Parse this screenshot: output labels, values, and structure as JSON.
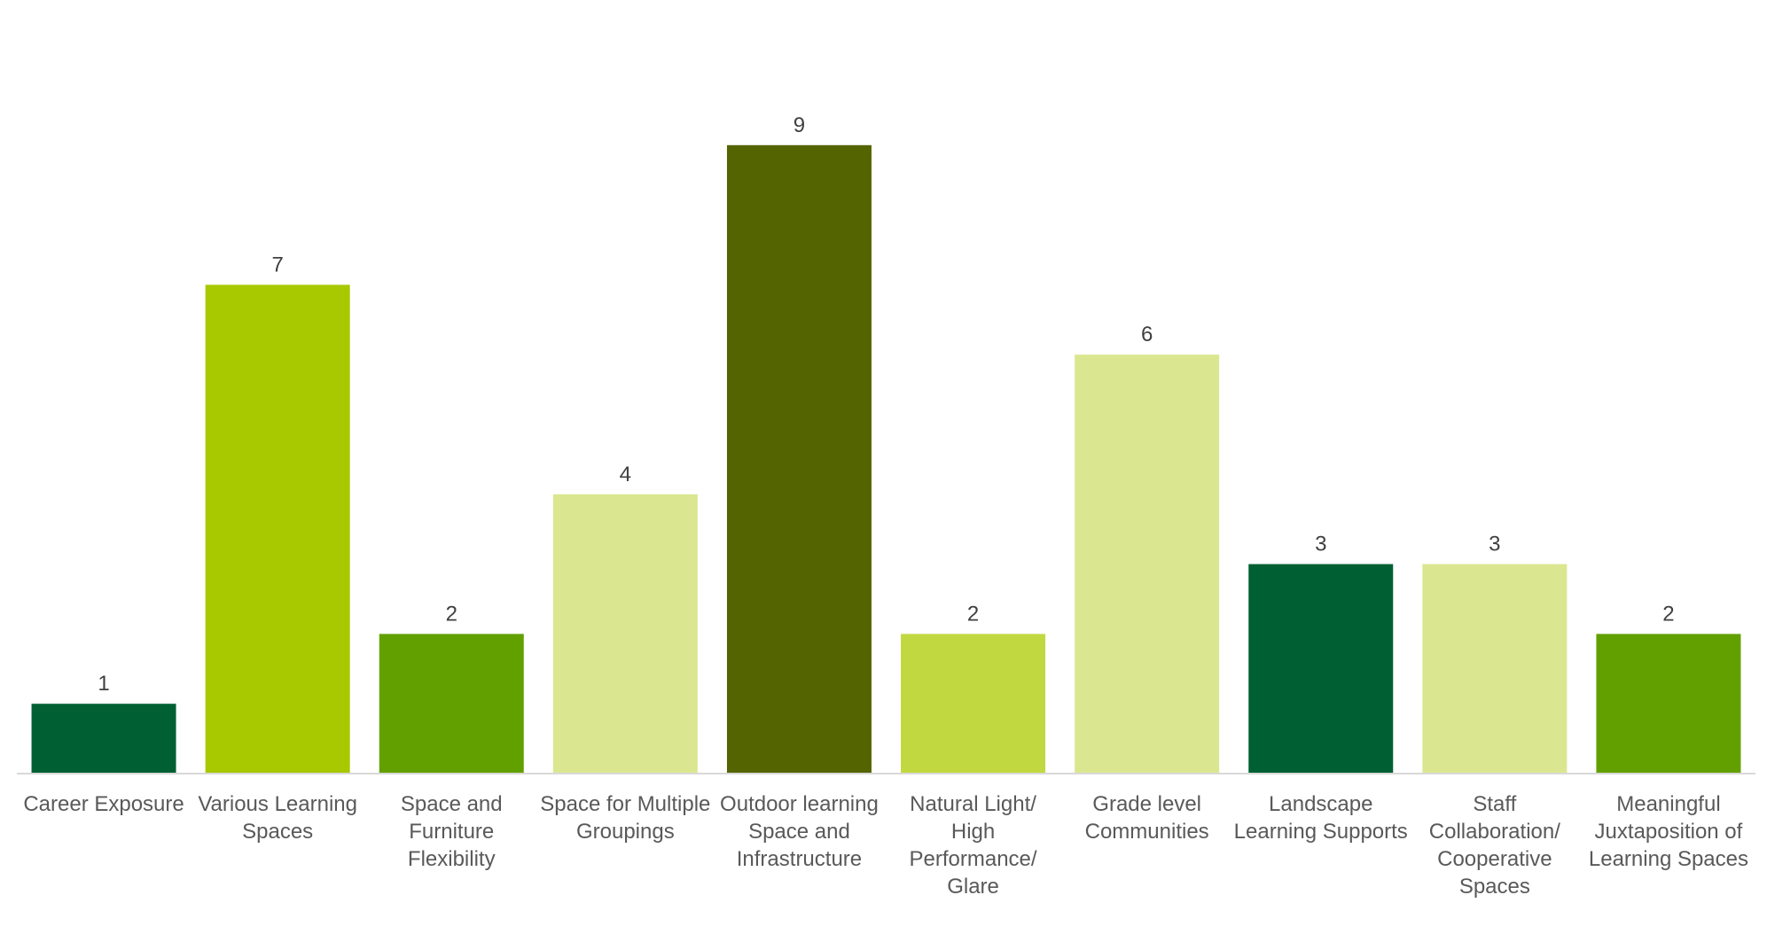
{
  "chart_data": {
    "type": "bar",
    "title": "",
    "xlabel": "",
    "ylabel": "",
    "ylim": [
      0,
      10
    ],
    "grid": false,
    "legend": "none",
    "categories": [
      [
        "Career Exposure"
      ],
      [
        "Various Learning",
        "Spaces"
      ],
      [
        "Space and",
        "Furniture",
        "Flexibility"
      ],
      [
        "Space for Multiple",
        "Groupings"
      ],
      [
        "Outdoor learning",
        "Space and",
        "Infrastructure"
      ],
      [
        "Natural Light/",
        "High",
        "Performance/",
        "Glare"
      ],
      [
        "Grade level",
        "Communities"
      ],
      [
        "Landscape",
        "Learning Supports"
      ],
      [
        "Staff",
        "Collaboration/",
        "Cooperative",
        "Spaces"
      ],
      [
        "Meaningful",
        "Juxtaposition of",
        "Learning Spaces"
      ]
    ],
    "values": [
      1,
      7,
      2,
      4,
      9,
      2,
      6,
      3,
      3,
      2
    ],
    "data_labels": [
      "1",
      "7",
      "2",
      "4",
      "9",
      "2",
      "6",
      "3",
      "3",
      "2"
    ],
    "colors": [
      "#006033",
      "#a8c800",
      "#62a000",
      "#dbe790",
      "#536400",
      "#c2d840",
      "#dbe790",
      "#006033",
      "#dbe790",
      "#62a000"
    ],
    "axis_color": "#d9d9d9"
  }
}
